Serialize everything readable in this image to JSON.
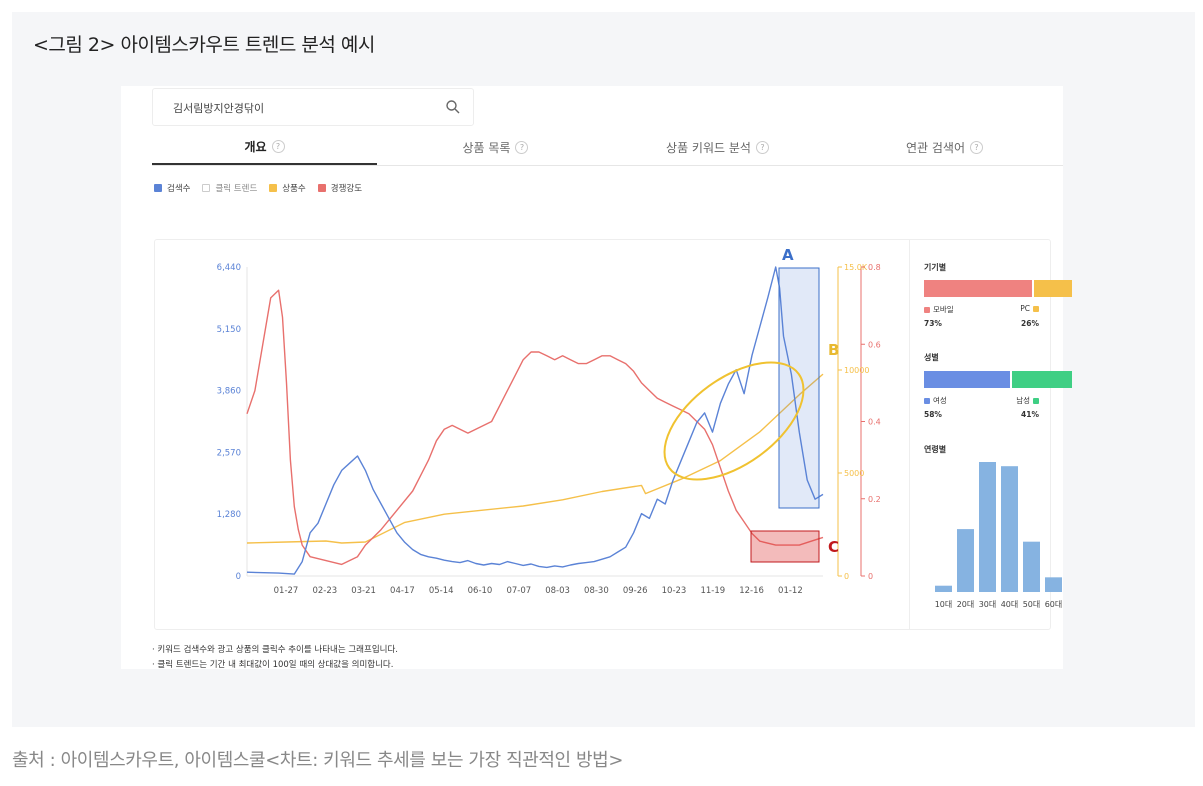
{
  "figure": {
    "title": "<그림 2> 아이템스카우트 트렌드 분석 예시",
    "source": "출처 : 아이템스카우트, 아이템스쿨<차트: 키워드 추세를 보는 가장 직관적인 방법>"
  },
  "search": {
    "value": "김서림방지안경닦이"
  },
  "tabs": [
    {
      "label": "개요",
      "help": "?"
    },
    {
      "label": "상품 목록",
      "help": "?"
    },
    {
      "label": "상품 키워드 분석",
      "help": "?"
    },
    {
      "label": "연관 검색어",
      "help": "?"
    }
  ],
  "legend": [
    {
      "label": "검색수",
      "color": "#5b83d6"
    },
    {
      "label": "클릭 트렌드",
      "color": "#ffffff"
    },
    {
      "label": "상품수",
      "color": "#f5c04a"
    },
    {
      "label": "경쟁강도",
      "color": "#e8706d"
    }
  ],
  "chart_data": {
    "type": "line",
    "x_tick_labels": [
      "01-27",
      "02-23",
      "03-21",
      "04-17",
      "05-14",
      "06-10",
      "07-07",
      "08-03",
      "08-30",
      "09-26",
      "10-23",
      "11-19",
      "12-16",
      "01-12"
    ],
    "left_axis": {
      "ticks": [
        "6,440",
        "5,150",
        "3,860",
        "2,570",
        "1,280",
        "0"
      ],
      "range": [
        0,
        6440
      ]
    },
    "right_axis_1": {
      "ticks": [
        "15.0K",
        "10000",
        "5000",
        "0"
      ],
      "range": [
        0,
        15000
      ]
    },
    "right_axis_2": {
      "ticks": [
        "0.8",
        "0.6",
        "0.4",
        "0.2",
        "0"
      ],
      "range": [
        0,
        0.8
      ]
    },
    "series": [
      {
        "name": "검색수",
        "axis": "left",
        "color": "#5b83d6",
        "values": [
          [
            0,
            80
          ],
          [
            8,
            60
          ],
          [
            12,
            40
          ],
          [
            14,
            300
          ],
          [
            16,
            900
          ],
          [
            18,
            1100
          ],
          [
            20,
            1500
          ],
          [
            22,
            1900
          ],
          [
            24,
            2200
          ],
          [
            26,
            2350
          ],
          [
            28,
            2500
          ],
          [
            30,
            2200
          ],
          [
            32,
            1800
          ],
          [
            34,
            1500
          ],
          [
            36,
            1200
          ],
          [
            38,
            900
          ],
          [
            40,
            700
          ],
          [
            42,
            550
          ],
          [
            44,
            450
          ],
          [
            46,
            400
          ],
          [
            48,
            370
          ],
          [
            50,
            330
          ],
          [
            52,
            300
          ],
          [
            54,
            280
          ],
          [
            56,
            320
          ],
          [
            58,
            260
          ],
          [
            60,
            230
          ],
          [
            62,
            260
          ],
          [
            64,
            240
          ],
          [
            66,
            300
          ],
          [
            68,
            260
          ],
          [
            70,
            220
          ],
          [
            72,
            250
          ],
          [
            74,
            200
          ],
          [
            76,
            180
          ],
          [
            78,
            210
          ],
          [
            80,
            190
          ],
          [
            82,
            230
          ],
          [
            84,
            260
          ],
          [
            86,
            280
          ],
          [
            88,
            300
          ],
          [
            90,
            350
          ],
          [
            92,
            400
          ],
          [
            94,
            500
          ],
          [
            96,
            600
          ],
          [
            98,
            900
          ],
          [
            100,
            1300
          ],
          [
            102,
            1200
          ],
          [
            104,
            1600
          ],
          [
            106,
            1500
          ],
          [
            108,
            2000
          ],
          [
            110,
            2400
          ],
          [
            112,
            2800
          ],
          [
            114,
            3200
          ],
          [
            116,
            3400
          ],
          [
            118,
            3000
          ],
          [
            120,
            3600
          ],
          [
            122,
            4000
          ],
          [
            124,
            4300
          ],
          [
            126,
            3800
          ],
          [
            128,
            4600
          ],
          [
            130,
            5200
          ],
          [
            132,
            5800
          ],
          [
            134,
            6440
          ],
          [
            135,
            6000
          ],
          [
            136,
            5000
          ],
          [
            138,
            4200
          ],
          [
            140,
            3000
          ],
          [
            142,
            2000
          ],
          [
            144,
            1600
          ],
          [
            146,
            1700
          ]
        ]
      },
      {
        "name": "상품수",
        "axis": "right1",
        "color": "#f5c04a",
        "values": [
          [
            0,
            1600
          ],
          [
            10,
            1650
          ],
          [
            20,
            1700
          ],
          [
            24,
            1600
          ],
          [
            30,
            1650
          ],
          [
            40,
            2600
          ],
          [
            50,
            3000
          ],
          [
            60,
            3200
          ],
          [
            70,
            3400
          ],
          [
            80,
            3700
          ],
          [
            90,
            4100
          ],
          [
            100,
            4400
          ],
          [
            101,
            4000
          ],
          [
            110,
            4700
          ],
          [
            120,
            5600
          ],
          [
            130,
            7000
          ],
          [
            140,
            8800
          ],
          [
            146,
            9800
          ]
        ]
      },
      {
        "name": "경쟁강도",
        "axis": "right2",
        "color": "#e8706d",
        "values": [
          [
            0,
            0.42
          ],
          [
            2,
            0.48
          ],
          [
            4,
            0.6
          ],
          [
            6,
            0.72
          ],
          [
            8,
            0.74
          ],
          [
            9,
            0.67
          ],
          [
            10,
            0.5
          ],
          [
            11,
            0.3
          ],
          [
            12,
            0.18
          ],
          [
            13,
            0.12
          ],
          [
            14,
            0.08
          ],
          [
            16,
            0.05
          ],
          [
            20,
            0.04
          ],
          [
            24,
            0.03
          ],
          [
            28,
            0.05
          ],
          [
            30,
            0.08
          ],
          [
            34,
            0.12
          ],
          [
            38,
            0.17
          ],
          [
            42,
            0.22
          ],
          [
            44,
            0.26
          ],
          [
            46,
            0.3
          ],
          [
            48,
            0.35
          ],
          [
            50,
            0.38
          ],
          [
            52,
            0.39
          ],
          [
            54,
            0.38
          ],
          [
            56,
            0.37
          ],
          [
            58,
            0.38
          ],
          [
            60,
            0.39
          ],
          [
            62,
            0.4
          ],
          [
            64,
            0.44
          ],
          [
            66,
            0.48
          ],
          [
            68,
            0.52
          ],
          [
            70,
            0.56
          ],
          [
            72,
            0.58
          ],
          [
            74,
            0.58
          ],
          [
            76,
            0.57
          ],
          [
            78,
            0.56
          ],
          [
            80,
            0.57
          ],
          [
            82,
            0.56
          ],
          [
            84,
            0.55
          ],
          [
            86,
            0.55
          ],
          [
            88,
            0.56
          ],
          [
            90,
            0.57
          ],
          [
            92,
            0.57
          ],
          [
            94,
            0.56
          ],
          [
            96,
            0.55
          ],
          [
            98,
            0.53
          ],
          [
            100,
            0.5
          ],
          [
            102,
            0.48
          ],
          [
            104,
            0.46
          ],
          [
            106,
            0.45
          ],
          [
            108,
            0.44
          ],
          [
            110,
            0.43
          ],
          [
            112,
            0.42
          ],
          [
            114,
            0.4
          ],
          [
            116,
            0.38
          ],
          [
            118,
            0.34
          ],
          [
            120,
            0.28
          ],
          [
            122,
            0.22
          ],
          [
            124,
            0.17
          ],
          [
            126,
            0.14
          ],
          [
            128,
            0.11
          ],
          [
            130,
            0.09
          ],
          [
            134,
            0.08
          ],
          [
            140,
            0.08
          ],
          [
            143,
            0.09
          ],
          [
            146,
            0.1
          ]
        ]
      }
    ],
    "annotations": [
      {
        "label": "A",
        "color": "#3b6fc9"
      },
      {
        "label": "B",
        "color": "#e8b92f"
      },
      {
        "label": "C",
        "color": "#c0191c"
      }
    ]
  },
  "breakdown": {
    "device": {
      "title": "기기별",
      "items": [
        {
          "label": "모바일",
          "pct": "73%",
          "value": 73,
          "color": "#ef8280"
        },
        {
          "label": "PC",
          "pct": "26%",
          "value": 26,
          "color": "#f5c04a"
        }
      ]
    },
    "gender": {
      "title": "성별",
      "items": [
        {
          "label": "여성",
          "pct": "58%",
          "value": 58,
          "color": "#6a8ee3"
        },
        {
          "label": "남성",
          "pct": "41%",
          "value": 41,
          "color": "#3fcf84"
        }
      ]
    },
    "age": {
      "title": "연령별",
      "labels": [
        "10대",
        "20대",
        "30대",
        "40대",
        "50대",
        "60대"
      ],
      "values": [
        3,
        30,
        62,
        60,
        24,
        7
      ],
      "color": "#86b3e1"
    }
  },
  "notes": [
    "· 키워드 검색수와 광고 상품의 클릭수 추이를 나타내는 그래프입니다.",
    "· 클릭 트렌드는 기간 내 최대값이 100일 때의 상대값을 의미합니다."
  ]
}
